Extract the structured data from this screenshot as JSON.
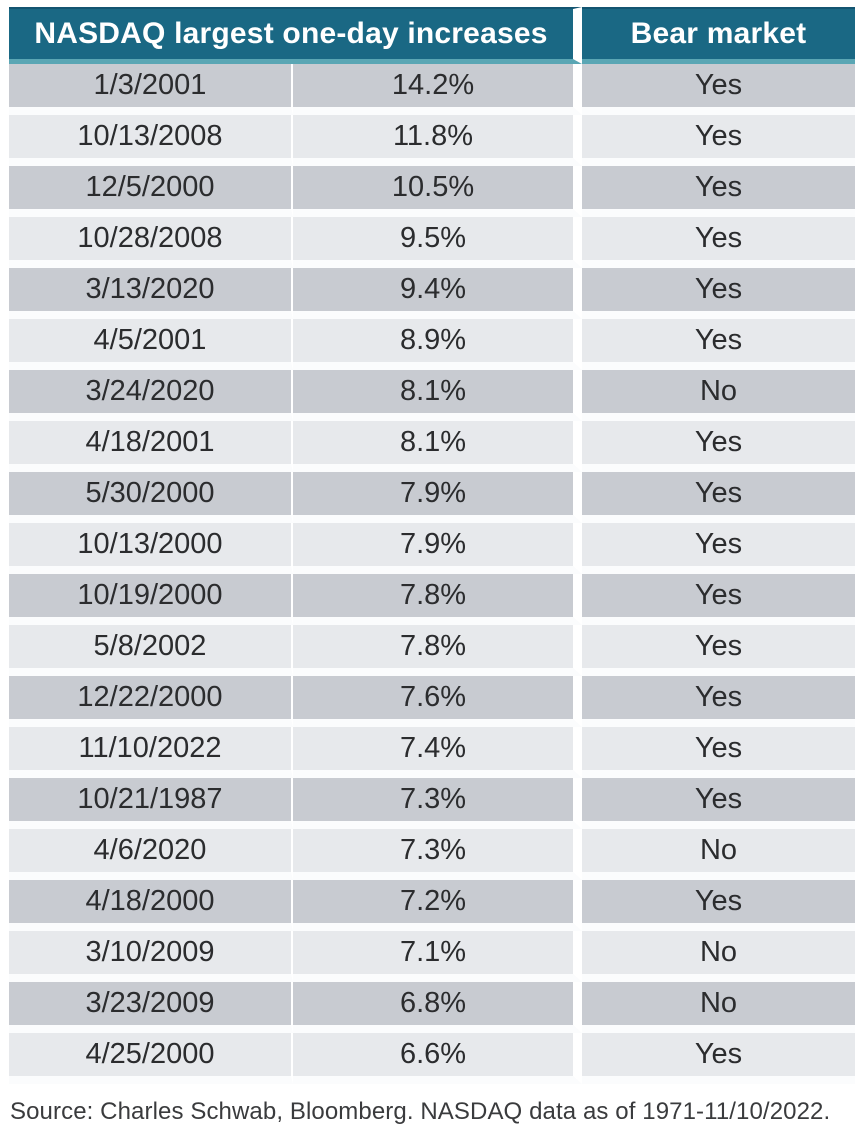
{
  "colors": {
    "header_bg": "#1a6884",
    "header_underline": "#5aa6b4",
    "header_text": "#ffffff",
    "row_dark": "#c8cbd1",
    "row_light": "#e7e9ec",
    "body_text": "#2b2c2e",
    "source_text": "#3a3b3d",
    "page_bg": "#ffffff"
  },
  "chart_data": {
    "type": "table",
    "title": "NASDAQ largest one-day increases",
    "header_main": "NASDAQ largest one-day increases",
    "header_bear": "Bear market",
    "layout": {
      "alternating_rows": true,
      "first_row_shade": "dark",
      "header_spans_first_two_columns": true
    },
    "rows": [
      {
        "date": "1/3/2001",
        "increase": "14.2%",
        "increase_pct": 14.2,
        "bear_market": "Yes"
      },
      {
        "date": "10/13/2008",
        "increase": "11.8%",
        "increase_pct": 11.8,
        "bear_market": "Yes"
      },
      {
        "date": "12/5/2000",
        "increase": "10.5%",
        "increase_pct": 10.5,
        "bear_market": "Yes"
      },
      {
        "date": "10/28/2008",
        "increase": "9.5%",
        "increase_pct": 9.5,
        "bear_market": "Yes"
      },
      {
        "date": "3/13/2020",
        "increase": "9.4%",
        "increase_pct": 9.4,
        "bear_market": "Yes"
      },
      {
        "date": "4/5/2001",
        "increase": "8.9%",
        "increase_pct": 8.9,
        "bear_market": "Yes"
      },
      {
        "date": "3/24/2020",
        "increase": "8.1%",
        "increase_pct": 8.1,
        "bear_market": "No"
      },
      {
        "date": "4/18/2001",
        "increase": "8.1%",
        "increase_pct": 8.1,
        "bear_market": "Yes"
      },
      {
        "date": "5/30/2000",
        "increase": "7.9%",
        "increase_pct": 7.9,
        "bear_market": "Yes"
      },
      {
        "date": "10/13/2000",
        "increase": "7.9%",
        "increase_pct": 7.9,
        "bear_market": "Yes"
      },
      {
        "date": "10/19/2000",
        "increase": "7.8%",
        "increase_pct": 7.8,
        "bear_market": "Yes"
      },
      {
        "date": "5/8/2002",
        "increase": "7.8%",
        "increase_pct": 7.8,
        "bear_market": "Yes"
      },
      {
        "date": "12/22/2000",
        "increase": "7.6%",
        "increase_pct": 7.6,
        "bear_market": "Yes"
      },
      {
        "date": "11/10/2022",
        "increase": "7.4%",
        "increase_pct": 7.4,
        "bear_market": "Yes"
      },
      {
        "date": "10/21/1987",
        "increase": "7.3%",
        "increase_pct": 7.3,
        "bear_market": "Yes"
      },
      {
        "date": "4/6/2020",
        "increase": "7.3%",
        "increase_pct": 7.3,
        "bear_market": "No"
      },
      {
        "date": "4/18/2000",
        "increase": "7.2%",
        "increase_pct": 7.2,
        "bear_market": "Yes"
      },
      {
        "date": "3/10/2009",
        "increase": "7.1%",
        "increase_pct": 7.1,
        "bear_market": "No"
      },
      {
        "date": "3/23/2009",
        "increase": "6.8%",
        "increase_pct": 6.8,
        "bear_market": "No"
      },
      {
        "date": "4/25/2000",
        "increase": "6.6%",
        "increase_pct": 6.6,
        "bear_market": "Yes"
      }
    ]
  },
  "source_note": "Source: Charles Schwab, Bloomberg. NASDAQ data as of 1971-11/10/2022."
}
